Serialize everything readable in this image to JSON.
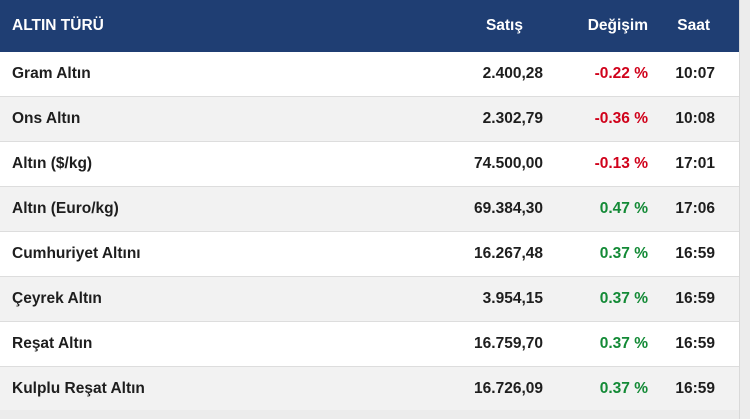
{
  "table": {
    "headers": {
      "type": "ALTIN TÜRÜ",
      "sell": "Satış",
      "change": "Değişim",
      "time": "Saat"
    },
    "colors": {
      "header_bg": "#1f3e73",
      "negative": "#d0021b",
      "positive": "#138a36"
    },
    "rows": [
      {
        "name": "Gram Altın",
        "sell": "2.400,28",
        "change": "-0.22 %",
        "direction": "neg",
        "time": "10:07"
      },
      {
        "name": "Ons Altın",
        "sell": "2.302,79",
        "change": "-0.36 %",
        "direction": "neg",
        "time": "10:08"
      },
      {
        "name": "Altın ($/kg)",
        "sell": "74.500,00",
        "change": "-0.13 %",
        "direction": "neg",
        "time": "17:01"
      },
      {
        "name": "Altın (Euro/kg)",
        "sell": "69.384,30",
        "change": "0.47 %",
        "direction": "pos",
        "time": "17:06"
      },
      {
        "name": "Cumhuriyet Altını",
        "sell": "16.267,48",
        "change": "0.37 %",
        "direction": "pos",
        "time": "16:59"
      },
      {
        "name": "Çeyrek Altın",
        "sell": "3.954,15",
        "change": "0.37 %",
        "direction": "pos",
        "time": "16:59"
      },
      {
        "name": "Reşat Altın",
        "sell": "16.759,70",
        "change": "0.37 %",
        "direction": "pos",
        "time": "16:59"
      },
      {
        "name": "Kulplu Reşat Altın",
        "sell": "16.726,09",
        "change": "0.37 %",
        "direction": "pos",
        "time": "16:59"
      }
    ]
  }
}
